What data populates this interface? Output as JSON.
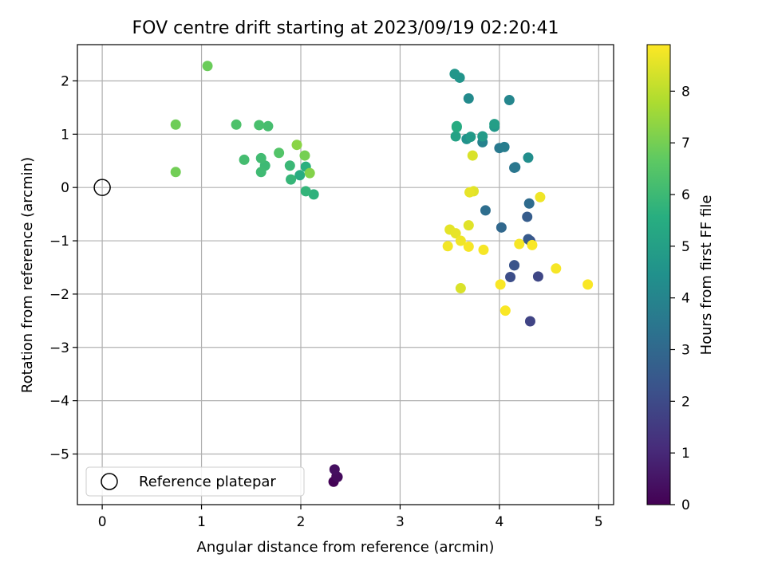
{
  "chart_data": {
    "type": "scatter",
    "title": "FOV centre drift starting at 2023/09/19 02:20:41",
    "xlabel": "Angular distance from reference (arcmin)",
    "ylabel": "Rotation from reference (arcmin)",
    "colorbar_label": "Hours from first FF file",
    "xlim": [
      -0.25,
      5.15
    ],
    "ylim": [
      -5.95,
      2.68
    ],
    "clim": [
      0,
      8.9
    ],
    "xticks": [
      0,
      1,
      2,
      3,
      4,
      5
    ],
    "yticks": [
      -5,
      -4,
      -3,
      -2,
      -1,
      0,
      1,
      2
    ],
    "cticks": [
      0,
      1,
      2,
      3,
      4,
      5,
      6,
      7,
      8
    ],
    "grid": true,
    "colormap": "viridis",
    "legend": {
      "placement": "lower left",
      "entries": [
        "Reference platepar"
      ]
    },
    "reference_point": {
      "x": 0,
      "y": 0
    },
    "points": [
      {
        "x": 2.33,
        "y": -5.52,
        "t": 0.05
      },
      {
        "x": 2.36,
        "y": -5.42,
        "t": 0.15
      },
      {
        "x": 2.37,
        "y": -5.43,
        "t": 0.25
      },
      {
        "x": 2.34,
        "y": -5.29,
        "t": 0.35
      },
      {
        "x": 4.31,
        "y": -2.51,
        "t": 1.8
      },
      {
        "x": 4.39,
        "y": -1.67,
        "t": 1.9
      },
      {
        "x": 4.11,
        "y": -1.68,
        "t": 2.1
      },
      {
        "x": 4.15,
        "y": -1.46,
        "t": 2.2
      },
      {
        "x": 4.15,
        "y": -1.46,
        "t": 2.3
      },
      {
        "x": 4.31,
        "y": -1.0,
        "t": 2.2
      },
      {
        "x": 4.29,
        "y": -0.97,
        "t": 2.5
      },
      {
        "x": 4.28,
        "y": -0.55,
        "t": 2.6
      },
      {
        "x": 4.02,
        "y": -0.75,
        "t": 3.0
      },
      {
        "x": 4.3,
        "y": -0.3,
        "t": 3.1
      },
      {
        "x": 3.86,
        "y": -0.43,
        "t": 3.2
      },
      {
        "x": 4.15,
        "y": 0.37,
        "t": 3.4
      },
      {
        "x": 4.16,
        "y": 0.38,
        "t": 3.5
      },
      {
        "x": 4.0,
        "y": 0.74,
        "t": 3.6
      },
      {
        "x": 4.05,
        "y": 0.76,
        "t": 3.75
      },
      {
        "x": 3.83,
        "y": 0.85,
        "t": 3.9
      },
      {
        "x": 4.1,
        "y": 1.64,
        "t": 4.05
      },
      {
        "x": 3.69,
        "y": 1.67,
        "t": 4.2
      },
      {
        "x": 4.29,
        "y": 0.56,
        "t": 4.35
      },
      {
        "x": 3.67,
        "y": 0.91,
        "t": 4.5
      },
      {
        "x": 3.6,
        "y": 2.06,
        "t": 4.55
      },
      {
        "x": 3.55,
        "y": 2.13,
        "t": 4.65
      },
      {
        "x": 3.95,
        "y": 1.14,
        "t": 4.7
      },
      {
        "x": 3.71,
        "y": 0.95,
        "t": 4.8
      },
      {
        "x": 3.83,
        "y": 0.96,
        "t": 4.85
      },
      {
        "x": 3.95,
        "y": 1.19,
        "t": 4.95
      },
      {
        "x": 3.56,
        "y": 0.96,
        "t": 5.1
      },
      {
        "x": 3.57,
        "y": 1.13,
        "t": 5.25
      },
      {
        "x": 3.57,
        "y": 1.15,
        "t": 5.45
      },
      {
        "x": 1.99,
        "y": 0.23,
        "t": 5.5
      },
      {
        "x": 2.05,
        "y": 0.39,
        "t": 5.6
      },
      {
        "x": 2.13,
        "y": -0.13,
        "t": 5.7
      },
      {
        "x": 2.05,
        "y": -0.07,
        "t": 5.8
      },
      {
        "x": 1.9,
        "y": 0.15,
        "t": 5.85
      },
      {
        "x": 1.89,
        "y": 0.41,
        "t": 5.95
      },
      {
        "x": 1.64,
        "y": 0.41,
        "t": 6.0
      },
      {
        "x": 1.6,
        "y": 0.29,
        "t": 6.05
      },
      {
        "x": 1.6,
        "y": 0.55,
        "t": 6.1
      },
      {
        "x": 1.43,
        "y": 0.52,
        "t": 6.15
      },
      {
        "x": 1.67,
        "y": 1.15,
        "t": 6.2
      },
      {
        "x": 1.58,
        "y": 1.17,
        "t": 6.25
      },
      {
        "x": 1.35,
        "y": 1.18,
        "t": 6.35
      },
      {
        "x": 1.78,
        "y": 0.65,
        "t": 6.45
      },
      {
        "x": 2.04,
        "y": 0.6,
        "t": 7.0
      },
      {
        "x": 2.09,
        "y": 0.27,
        "t": 7.2
      },
      {
        "x": 1.96,
        "y": 0.8,
        "t": 7.3
      },
      {
        "x": 0.74,
        "y": 1.18,
        "t": 6.9
      },
      {
        "x": 0.74,
        "y": 0.29,
        "t": 6.95
      },
      {
        "x": 1.06,
        "y": 2.28,
        "t": 6.85
      },
      {
        "x": 3.73,
        "y": 0.6,
        "t": 8.4
      },
      {
        "x": 3.74,
        "y": -0.07,
        "t": 8.5
      },
      {
        "x": 3.7,
        "y": -0.09,
        "t": 8.6
      },
      {
        "x": 4.41,
        "y": -0.18,
        "t": 8.7
      },
      {
        "x": 3.69,
        "y": -0.71,
        "t": 8.5
      },
      {
        "x": 3.5,
        "y": -0.79,
        "t": 8.55
      },
      {
        "x": 3.56,
        "y": -0.86,
        "t": 8.6
      },
      {
        "x": 3.61,
        "y": -1.0,
        "t": 8.7
      },
      {
        "x": 3.48,
        "y": -1.1,
        "t": 8.75
      },
      {
        "x": 3.69,
        "y": -1.11,
        "t": 8.8
      },
      {
        "x": 3.84,
        "y": -1.17,
        "t": 8.8
      },
      {
        "x": 4.2,
        "y": -1.06,
        "t": 8.8
      },
      {
        "x": 4.33,
        "y": -1.08,
        "t": 8.85
      },
      {
        "x": 4.57,
        "y": -1.52,
        "t": 8.8
      },
      {
        "x": 4.01,
        "y": -1.82,
        "t": 8.85
      },
      {
        "x": 3.61,
        "y": -1.89,
        "t": 8.4
      },
      {
        "x": 4.06,
        "y": -2.31,
        "t": 8.85
      },
      {
        "x": 4.89,
        "y": -1.82,
        "t": 8.85
      }
    ]
  }
}
